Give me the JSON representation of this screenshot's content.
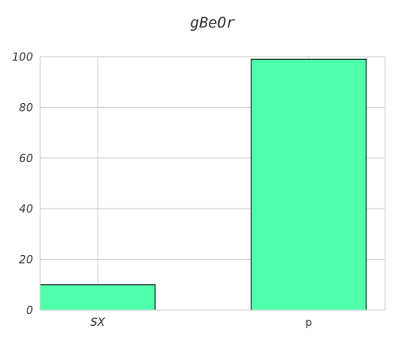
{
  "chart_data": {
    "type": "bar",
    "title": "gBeOr",
    "xlabel": "",
    "ylabel": "",
    "categories": [
      "SX",
      "p"
    ],
    "values": [
      10,
      99
    ],
    "ylim": [
      0,
      100
    ],
    "yticks": [
      0,
      20,
      40,
      60,
      80,
      100
    ],
    "grid": true,
    "legend": false,
    "bar_color": "#50ffaa",
    "bar_edge_color": "#000000",
    "grid_color": "#cccccc",
    "axis_color": "#cccccc"
  }
}
